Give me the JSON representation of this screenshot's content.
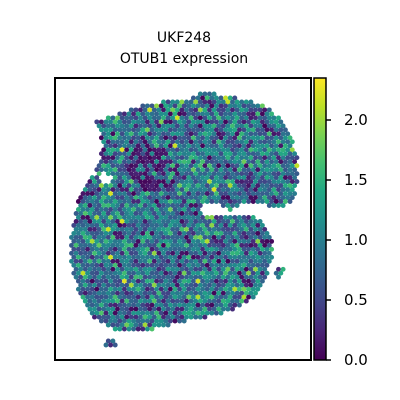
{
  "chart_data": {
    "type": "heatmap",
    "subtype": "spatial-hexbin",
    "title": [
      "UKF248",
      "OTUB1 expression"
    ],
    "xlabel": "",
    "ylabel": "",
    "colormap": "viridis",
    "colorbar": {
      "range": [
        0.0,
        2.35
      ],
      "ticks": [
        0.0,
        0.5,
        1.0,
        1.5,
        2.0
      ],
      "tick_labels": [
        "0.0",
        "0.5",
        "1.0",
        "1.5",
        "2.0"
      ]
    },
    "axes_ticks_visible": false,
    "grid": false,
    "value_distribution": "most spots between 0.5 and 1.5, sparse spots near 0 and up to ~2.2"
  }
}
